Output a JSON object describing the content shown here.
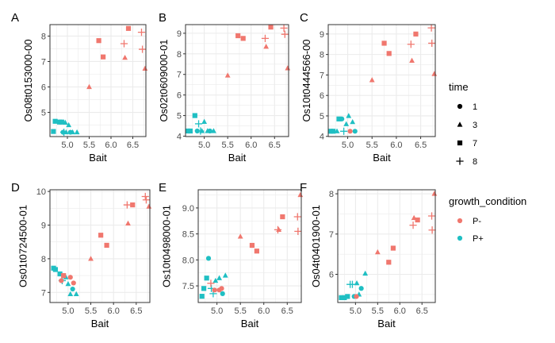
{
  "colors": {
    "P-": "#F0776E",
    "P+": "#1FBFC3",
    "panel_bg": "#FFFFFF",
    "grid": "#EBEBEB",
    "border": "#333333",
    "text": "#000000",
    "tick_text": "#4D4D4D"
  },
  "legend": {
    "time_title": "time",
    "time_items": [
      {
        "label": "1",
        "shape": "circle"
      },
      {
        "label": "3",
        "shape": "triangle"
      },
      {
        "label": "7",
        "shape": "square"
      },
      {
        "label": "8",
        "shape": "plus"
      }
    ],
    "growth_title": "growth_condition",
    "growth_items": [
      {
        "label": "P-",
        "color_key": "P-"
      },
      {
        "label": "P+",
        "color_key": "P+"
      }
    ]
  },
  "chart_data": [
    {
      "type": "scatter",
      "tag": "A",
      "xlabel": "Bait",
      "ylabel": "Os08t0153000-00",
      "xlim": [
        4.6,
        6.8
      ],
      "ylim": [
        4.05,
        8.45
      ],
      "xticks": [
        "5.0",
        "5.5",
        "6.0",
        "6.5"
      ],
      "yticks": [
        "5",
        "6",
        "7",
        "8"
      ],
      "points": [
        {
          "x": 4.68,
          "y": 4.25,
          "time": "7",
          "cond": "P+"
        },
        {
          "x": 4.72,
          "y": 4.65,
          "time": "7",
          "cond": "P+"
        },
        {
          "x": 4.82,
          "y": 4.62,
          "time": "7",
          "cond": "P+"
        },
        {
          "x": 4.87,
          "y": 4.62,
          "time": "7",
          "cond": "P+"
        },
        {
          "x": 4.9,
          "y": 4.22,
          "time": "1",
          "cond": "P+"
        },
        {
          "x": 4.95,
          "y": 4.6,
          "time": "3",
          "cond": "P+"
        },
        {
          "x": 4.97,
          "y": 4.22,
          "time": "3",
          "cond": "P+"
        },
        {
          "x": 5.03,
          "y": 4.5,
          "time": "3",
          "cond": "P+"
        },
        {
          "x": 5.07,
          "y": 4.22,
          "time": "1",
          "cond": "P+"
        },
        {
          "x": 5.12,
          "y": 4.22,
          "time": "3",
          "cond": "P+"
        },
        {
          "x": 5.22,
          "y": 4.22,
          "time": "3",
          "cond": "P+"
        },
        {
          "x": 4.92,
          "y": 4.22,
          "time": "8",
          "cond": "P+"
        },
        {
          "x": 5.5,
          "y": 6.0,
          "time": "3",
          "cond": "P-"
        },
        {
          "x": 5.72,
          "y": 7.82,
          "time": "7",
          "cond": "P-"
        },
        {
          "x": 5.82,
          "y": 7.18,
          "time": "7",
          "cond": "P-"
        },
        {
          "x": 6.3,
          "y": 7.7,
          "time": "8",
          "cond": "P-"
        },
        {
          "x": 6.32,
          "y": 7.15,
          "time": "3",
          "cond": "P-"
        },
        {
          "x": 6.4,
          "y": 8.3,
          "time": "7",
          "cond": "P-"
        },
        {
          "x": 6.7,
          "y": 8.15,
          "time": "8",
          "cond": "P-"
        },
        {
          "x": 6.72,
          "y": 7.48,
          "time": "8",
          "cond": "P-"
        },
        {
          "x": 6.78,
          "y": 6.72,
          "time": "3",
          "cond": "P-"
        }
      ]
    },
    {
      "type": "scatter",
      "tag": "B",
      "xlabel": "Bait",
      "ylabel": "Os02t0609000-01",
      "xlim": [
        4.6,
        6.8
      ],
      "ylim": [
        3.98,
        9.42
      ],
      "xticks": [
        "5.0",
        "5.5",
        "6.0",
        "6.5"
      ],
      "yticks": [
        "4",
        "5",
        "6",
        "7",
        "8",
        "9"
      ],
      "points": [
        {
          "x": 4.65,
          "y": 4.25,
          "time": "7",
          "cond": "P+"
        },
        {
          "x": 4.7,
          "y": 4.25,
          "time": "7",
          "cond": "P+"
        },
        {
          "x": 4.8,
          "y": 5.0,
          "time": "7",
          "cond": "P+"
        },
        {
          "x": 4.85,
          "y": 4.25,
          "time": "1",
          "cond": "P+"
        },
        {
          "x": 4.88,
          "y": 4.6,
          "time": "8",
          "cond": "P+"
        },
        {
          "x": 4.95,
          "y": 4.25,
          "time": "3",
          "cond": "P+"
        },
        {
          "x": 5.0,
          "y": 4.7,
          "time": "3",
          "cond": "P+"
        },
        {
          "x": 5.07,
          "y": 4.25,
          "time": "3",
          "cond": "P+"
        },
        {
          "x": 5.12,
          "y": 4.25,
          "time": "1",
          "cond": "P+"
        },
        {
          "x": 5.2,
          "y": 4.25,
          "time": "3",
          "cond": "P+"
        },
        {
          "x": 4.92,
          "y": 4.25,
          "time": "8",
          "cond": "P+"
        },
        {
          "x": 5.5,
          "y": 6.95,
          "time": "3",
          "cond": "P-"
        },
        {
          "x": 5.72,
          "y": 8.88,
          "time": "7",
          "cond": "P-"
        },
        {
          "x": 5.83,
          "y": 8.75,
          "time": "7",
          "cond": "P-"
        },
        {
          "x": 6.3,
          "y": 8.75,
          "time": "8",
          "cond": "P-"
        },
        {
          "x": 6.32,
          "y": 8.35,
          "time": "3",
          "cond": "P-"
        },
        {
          "x": 6.42,
          "y": 9.3,
          "time": "7",
          "cond": "P-"
        },
        {
          "x": 6.7,
          "y": 9.25,
          "time": "8",
          "cond": "P-"
        },
        {
          "x": 6.72,
          "y": 8.95,
          "time": "8",
          "cond": "P-"
        },
        {
          "x": 6.78,
          "y": 7.3,
          "time": "3",
          "cond": "P-"
        }
      ]
    },
    {
      "type": "scatter",
      "tag": "C",
      "xlabel": "Bait",
      "ylabel": "Os10t0444566-00",
      "xlim": [
        4.6,
        6.8
      ],
      "ylim": [
        3.99,
        9.46
      ],
      "xticks": [
        "5.0",
        "5.5",
        "6.0",
        "6.5"
      ],
      "yticks": [
        "4",
        "5",
        "6",
        "7",
        "8",
        "9"
      ],
      "points": [
        {
          "x": 4.65,
          "y": 4.25,
          "time": "7",
          "cond": "P+"
        },
        {
          "x": 4.7,
          "y": 4.25,
          "time": "7",
          "cond": "P+"
        },
        {
          "x": 4.82,
          "y": 4.85,
          "time": "7",
          "cond": "P+"
        },
        {
          "x": 4.88,
          "y": 4.85,
          "time": "1",
          "cond": "P+"
        },
        {
          "x": 4.92,
          "y": 4.25,
          "time": "8",
          "cond": "P+"
        },
        {
          "x": 4.97,
          "y": 4.6,
          "time": "3",
          "cond": "P+"
        },
        {
          "x": 5.02,
          "y": 5.0,
          "time": "3",
          "cond": "P+"
        },
        {
          "x": 5.1,
          "y": 4.7,
          "time": "3",
          "cond": "P+"
        },
        {
          "x": 5.15,
          "y": 4.25,
          "time": "1",
          "cond": "P+"
        },
        {
          "x": 4.78,
          "y": 4.25,
          "time": "3",
          "cond": "P+"
        },
        {
          "x": 5.05,
          "y": 4.25,
          "time": "1",
          "cond": "P-"
        },
        {
          "x": 5.5,
          "y": 6.75,
          "time": "3",
          "cond": "P-"
        },
        {
          "x": 5.75,
          "y": 8.55,
          "time": "7",
          "cond": "P-"
        },
        {
          "x": 5.85,
          "y": 8.05,
          "time": "7",
          "cond": "P-"
        },
        {
          "x": 6.3,
          "y": 8.5,
          "time": "8",
          "cond": "P-"
        },
        {
          "x": 6.32,
          "y": 7.7,
          "time": "3",
          "cond": "P-"
        },
        {
          "x": 6.4,
          "y": 9.0,
          "time": "7",
          "cond": "P-"
        },
        {
          "x": 6.72,
          "y": 9.3,
          "time": "8",
          "cond": "P-"
        },
        {
          "x": 6.73,
          "y": 8.55,
          "time": "8",
          "cond": "P-"
        },
        {
          "x": 6.78,
          "y": 7.05,
          "time": "3",
          "cond": "P-"
        }
      ]
    },
    {
      "type": "scatter",
      "tag": "D",
      "xlabel": "Bait",
      "ylabel": "Os01t0724500-01",
      "xlim": [
        4.6,
        6.8
      ],
      "ylim": [
        6.7,
        10.05
      ],
      "xticks": [
        "5.0",
        "5.5",
        "6.0",
        "6.5"
      ],
      "yticks": [
        "7",
        "8",
        "9",
        "10"
      ],
      "points": [
        {
          "x": 4.68,
          "y": 7.72,
          "time": "7",
          "cond": "P+"
        },
        {
          "x": 4.72,
          "y": 7.68,
          "time": "7",
          "cond": "P+"
        },
        {
          "x": 4.82,
          "y": 7.55,
          "time": "7",
          "cond": "P+"
        },
        {
          "x": 4.87,
          "y": 7.35,
          "time": "8",
          "cond": "P+"
        },
        {
          "x": 4.95,
          "y": 7.45,
          "time": "3",
          "cond": "P+"
        },
        {
          "x": 5.0,
          "y": 7.25,
          "time": "3",
          "cond": "P+"
        },
        {
          "x": 5.05,
          "y": 6.95,
          "time": "3",
          "cond": "P+"
        },
        {
          "x": 5.1,
          "y": 7.1,
          "time": "1",
          "cond": "P+"
        },
        {
          "x": 5.18,
          "y": 6.95,
          "time": "3",
          "cond": "P+"
        },
        {
          "x": 4.85,
          "y": 7.35,
          "time": "1",
          "cond": "P-"
        },
        {
          "x": 4.9,
          "y": 7.5,
          "time": "7",
          "cond": "P-"
        },
        {
          "x": 5.05,
          "y": 7.45,
          "time": "1",
          "cond": "P-"
        },
        {
          "x": 5.12,
          "y": 7.28,
          "time": "1",
          "cond": "P-"
        },
        {
          "x": 5.5,
          "y": 8.0,
          "time": "3",
          "cond": "P-"
        },
        {
          "x": 5.72,
          "y": 8.7,
          "time": "7",
          "cond": "P-"
        },
        {
          "x": 5.85,
          "y": 8.4,
          "time": "7",
          "cond": "P-"
        },
        {
          "x": 6.3,
          "y": 9.6,
          "time": "8",
          "cond": "P-"
        },
        {
          "x": 6.32,
          "y": 9.05,
          "time": "3",
          "cond": "P-"
        },
        {
          "x": 6.42,
          "y": 9.6,
          "time": "7",
          "cond": "P-"
        },
        {
          "x": 6.7,
          "y": 9.85,
          "time": "8",
          "cond": "P-"
        },
        {
          "x": 6.72,
          "y": 9.75,
          "time": "8",
          "cond": "P-"
        },
        {
          "x": 6.78,
          "y": 9.55,
          "time": "3",
          "cond": "P-"
        }
      ]
    },
    {
      "type": "scatter",
      "tag": "E",
      "xlabel": "Bait",
      "ylabel": "Os10t0498000-01",
      "xlim": [
        4.6,
        6.8
      ],
      "ylim": [
        7.18,
        9.35
      ],
      "xticks": [
        "5.0",
        "5.5",
        "6.0",
        "6.5"
      ],
      "yticks": [
        "7.5",
        "8.0",
        "8.5",
        "9.0"
      ],
      "points": [
        {
          "x": 4.68,
          "y": 7.3,
          "time": "7",
          "cond": "P+"
        },
        {
          "x": 4.72,
          "y": 7.45,
          "time": "7",
          "cond": "P+"
        },
        {
          "x": 4.78,
          "y": 7.65,
          "time": "7",
          "cond": "P+"
        },
        {
          "x": 4.82,
          "y": 8.03,
          "time": "1",
          "cond": "P+"
        },
        {
          "x": 4.88,
          "y": 7.45,
          "time": "8",
          "cond": "P+"
        },
        {
          "x": 4.92,
          "y": 7.35,
          "time": "8",
          "cond": "P+"
        },
        {
          "x": 4.97,
          "y": 7.6,
          "time": "3",
          "cond": "P+"
        },
        {
          "x": 5.05,
          "y": 7.65,
          "time": "3",
          "cond": "P+"
        },
        {
          "x": 5.12,
          "y": 7.35,
          "time": "1",
          "cond": "P+"
        },
        {
          "x": 5.18,
          "y": 7.7,
          "time": "3",
          "cond": "P+"
        },
        {
          "x": 4.87,
          "y": 7.55,
          "time": "8",
          "cond": "P-"
        },
        {
          "x": 4.95,
          "y": 7.42,
          "time": "1",
          "cond": "P-"
        },
        {
          "x": 5.05,
          "y": 7.42,
          "time": "1",
          "cond": "P-"
        },
        {
          "x": 5.1,
          "y": 7.45,
          "time": "1",
          "cond": "P-"
        },
        {
          "x": 5.5,
          "y": 8.45,
          "time": "3",
          "cond": "P-"
        },
        {
          "x": 5.75,
          "y": 8.28,
          "time": "7",
          "cond": "P-"
        },
        {
          "x": 5.85,
          "y": 8.17,
          "time": "7",
          "cond": "P-"
        },
        {
          "x": 6.3,
          "y": 8.58,
          "time": "8",
          "cond": "P-"
        },
        {
          "x": 6.32,
          "y": 8.58,
          "time": "3",
          "cond": "P-"
        },
        {
          "x": 6.4,
          "y": 8.83,
          "time": "7",
          "cond": "P-"
        },
        {
          "x": 6.72,
          "y": 8.83,
          "time": "8",
          "cond": "P-"
        },
        {
          "x": 6.73,
          "y": 8.55,
          "time": "8",
          "cond": "P-"
        },
        {
          "x": 6.78,
          "y": 9.25,
          "time": "3",
          "cond": "P-"
        }
      ]
    },
    {
      "type": "scatter",
      "tag": "F",
      "xlabel": "Bait",
      "ylabel": "Os04t0401900-01",
      "xlim": [
        4.6,
        6.8
      ],
      "ylim": [
        5.3,
        8.1
      ],
      "xticks": [
        "5.0",
        "5.5",
        "6.0",
        "6.5"
      ],
      "yticks": [
        "6",
        "7",
        "8"
      ],
      "points": [
        {
          "x": 4.68,
          "y": 5.42,
          "time": "7",
          "cond": "P+"
        },
        {
          "x": 4.75,
          "y": 5.42,
          "time": "7",
          "cond": "P+"
        },
        {
          "x": 4.82,
          "y": 5.45,
          "time": "7",
          "cond": "P+"
        },
        {
          "x": 4.88,
          "y": 5.75,
          "time": "8",
          "cond": "P+"
        },
        {
          "x": 4.93,
          "y": 5.75,
          "time": "8",
          "cond": "P+"
        },
        {
          "x": 4.97,
          "y": 5.45,
          "time": "1",
          "cond": "P+"
        },
        {
          "x": 5.03,
          "y": 5.78,
          "time": "3",
          "cond": "P+"
        },
        {
          "x": 5.08,
          "y": 5.5,
          "time": "3",
          "cond": "P+"
        },
        {
          "x": 5.13,
          "y": 5.65,
          "time": "1",
          "cond": "P+"
        },
        {
          "x": 5.22,
          "y": 6.02,
          "time": "3",
          "cond": "P+"
        },
        {
          "x": 5.02,
          "y": 5.45,
          "time": "1",
          "cond": "P-"
        },
        {
          "x": 5.5,
          "y": 6.55,
          "time": "3",
          "cond": "P-"
        },
        {
          "x": 5.75,
          "y": 6.3,
          "time": "7",
          "cond": "P-"
        },
        {
          "x": 5.85,
          "y": 6.65,
          "time": "7",
          "cond": "P-"
        },
        {
          "x": 6.3,
          "y": 7.22,
          "time": "8",
          "cond": "P-"
        },
        {
          "x": 6.32,
          "y": 7.4,
          "time": "3",
          "cond": "P-"
        },
        {
          "x": 6.4,
          "y": 7.35,
          "time": "7",
          "cond": "P-"
        },
        {
          "x": 6.72,
          "y": 7.45,
          "time": "8",
          "cond": "P-"
        },
        {
          "x": 6.73,
          "y": 7.1,
          "time": "8",
          "cond": "P-"
        },
        {
          "x": 6.78,
          "y": 8.0,
          "time": "3",
          "cond": "P-"
        }
      ]
    }
  ]
}
